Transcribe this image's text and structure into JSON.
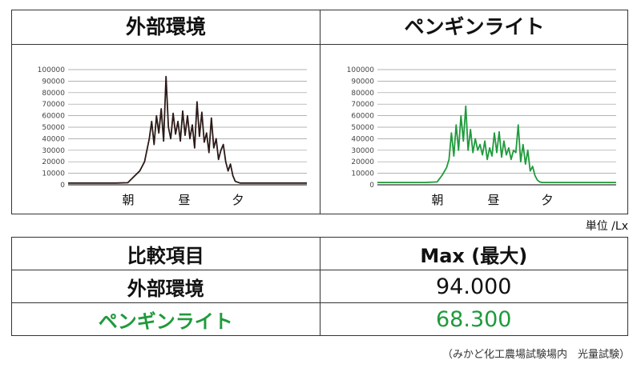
{
  "unit_label": "単位 /Lx",
  "footnote": "（みかど化工農場試験場内　光量試験）",
  "comparison": {
    "header": [
      "比較項目",
      "Max (最大)"
    ],
    "rows": [
      {
        "label": "外部環境",
        "value": "94.000",
        "color": "#111111"
      },
      {
        "label": "ペンギンライト",
        "value": "68.300",
        "color": "#1f9a3c"
      }
    ]
  },
  "chart_data": [
    {
      "type": "line",
      "title": "外部環境",
      "ylim": [
        0,
        100000
      ],
      "yticks": [
        "0",
        "10000",
        "20000",
        "30000",
        "40000",
        "50000",
        "60000",
        "70000",
        "80000",
        "90000",
        "100000"
      ],
      "x_categories": [
        "朝",
        "昼",
        "夕"
      ],
      "color": "#2b1a17",
      "grid": true,
      "series": [
        {
          "x": [
            0,
            10,
            20,
            25,
            28,
            30,
            32,
            34,
            35,
            36,
            37,
            38,
            39,
            40,
            41,
            42,
            43,
            44,
            45,
            46,
            47,
            48,
            49,
            50,
            51,
            52,
            53,
            54,
            55,
            56,
            57,
            58,
            59,
            60,
            61,
            62,
            63,
            64,
            65,
            66,
            67,
            68,
            69,
            70,
            72,
            74,
            76,
            80,
            90,
            100
          ],
          "values": [
            1500,
            1500,
            1500,
            1800,
            8000,
            12000,
            20000,
            40000,
            55000,
            35000,
            60000,
            45000,
            66000,
            38000,
            94000,
            50000,
            40000,
            62000,
            44000,
            55000,
            38000,
            64000,
            43000,
            60000,
            40000,
            52000,
            32000,
            72000,
            42000,
            63000,
            37000,
            45000,
            28000,
            58000,
            32000,
            40000,
            22000,
            30000,
            35000,
            20000,
            12000,
            18000,
            8000,
            3000,
            1500,
            1500,
            1500,
            1500,
            1500,
            1500
          ]
        }
      ]
    },
    {
      "type": "line",
      "title": "ペンギンライト",
      "ylim": [
        0,
        100000
      ],
      "yticks": [
        "0",
        "10000",
        "20000",
        "30000",
        "40000",
        "50000",
        "60000",
        "70000",
        "80000",
        "90000",
        "100000"
      ],
      "x_categories": [
        "朝",
        "昼",
        "夕"
      ],
      "color": "#1f9a3c",
      "grid": true,
      "series": [
        {
          "x": [
            0,
            10,
            20,
            25,
            27,
            29,
            30,
            31,
            32,
            33,
            34,
            35,
            36,
            37,
            38,
            39,
            40,
            41,
            42,
            43,
            44,
            45,
            46,
            47,
            48,
            49,
            50,
            51,
            52,
            53,
            54,
            55,
            56,
            57,
            58,
            59,
            60,
            61,
            62,
            63,
            64,
            65,
            66,
            67,
            68,
            69,
            70,
            72,
            80,
            90,
            100
          ],
          "values": [
            2000,
            2000,
            2000,
            2500,
            8000,
            15000,
            22000,
            45000,
            25000,
            52000,
            30000,
            60000,
            38000,
            68300,
            30000,
            48000,
            28000,
            40000,
            30000,
            35000,
            26000,
            38000,
            22000,
            32000,
            25000,
            45000,
            28000,
            46000,
            24000,
            38000,
            26000,
            32000,
            22000,
            30000,
            28000,
            52000,
            20000,
            35000,
            18000,
            30000,
            12000,
            16000,
            8000,
            4000,
            2500,
            2000,
            2000,
            2000,
            2000,
            2000,
            2000
          ]
        }
      ]
    }
  ]
}
